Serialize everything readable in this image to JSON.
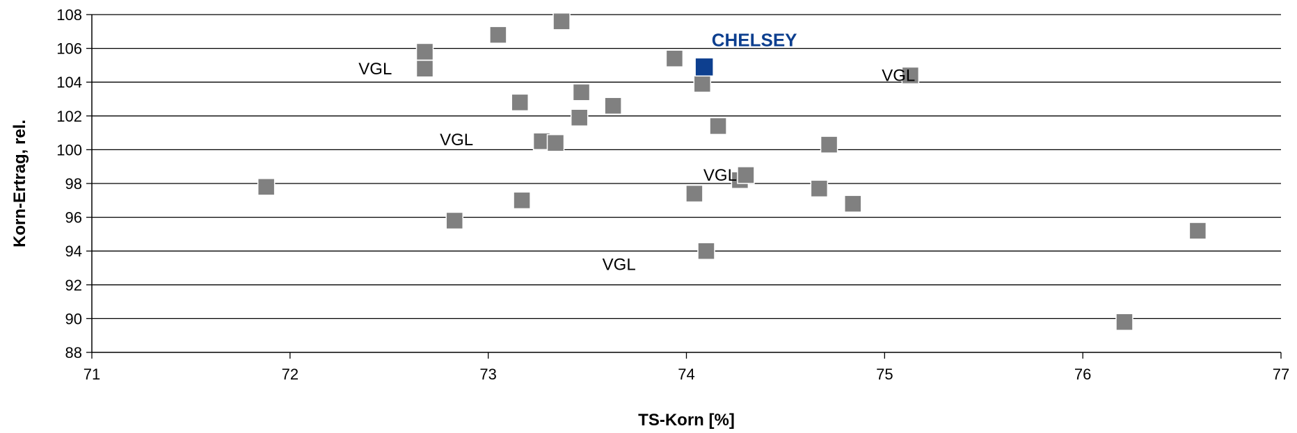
{
  "chart_data": {
    "type": "scatter",
    "xlabel": "TS-Korn [%]",
    "ylabel": "Korn-Ertrag, rel.",
    "xlim": [
      71,
      77
    ],
    "ylim": [
      88,
      108
    ],
    "x_ticks": [
      "71",
      "72",
      "73",
      "74",
      "75",
      "76",
      "77"
    ],
    "y_ticks": [
      "88",
      "90",
      "92",
      "94",
      "96",
      "98",
      "100",
      "102",
      "104",
      "106",
      "108"
    ],
    "grid": "horizontal",
    "point_color": "#808080",
    "highlight_color": "#0D3F8F",
    "points": [
      {
        "x": 71.88,
        "y": 97.8
      },
      {
        "x": 72.68,
        "y": 105.8
      },
      {
        "x": 72.68,
        "y": 104.8
      },
      {
        "x": 72.83,
        "y": 95.8
      },
      {
        "x": 73.05,
        "y": 106.8
      },
      {
        "x": 73.16,
        "y": 102.8
      },
      {
        "x": 73.17,
        "y": 97.0
      },
      {
        "x": 73.27,
        "y": 100.5
      },
      {
        "x": 73.34,
        "y": 100.4
      },
      {
        "x": 73.37,
        "y": 107.6
      },
      {
        "x": 73.46,
        "y": 101.9
      },
      {
        "x": 73.47,
        "y": 103.4
      },
      {
        "x": 73.63,
        "y": 102.6
      },
      {
        "x": 73.94,
        "y": 105.4
      },
      {
        "x": 74.04,
        "y": 97.4
      },
      {
        "x": 74.08,
        "y": 103.9
      },
      {
        "x": 74.1,
        "y": 94.0
      },
      {
        "x": 74.16,
        "y": 101.4
      },
      {
        "x": 74.27,
        "y": 98.2
      },
      {
        "x": 74.3,
        "y": 98.5
      },
      {
        "x": 74.67,
        "y": 97.7
      },
      {
        "x": 74.72,
        "y": 100.3
      },
      {
        "x": 74.84,
        "y": 96.8
      },
      {
        "x": 75.13,
        "y": 104.4
      },
      {
        "x": 76.21,
        "y": 89.8
      },
      {
        "x": 76.58,
        "y": 95.2
      }
    ],
    "highlight": {
      "x": 74.09,
      "y": 104.9,
      "label": "CHELSEY"
    },
    "annotations": [
      {
        "text": "VGL",
        "x": 72.43,
        "y": 104.8
      },
      {
        "text": "VGL",
        "x": 72.84,
        "y": 100.6
      },
      {
        "text": "VGL",
        "x": 75.07,
        "y": 104.4
      },
      {
        "text": "VGL",
        "x": 74.17,
        "y": 98.5
      },
      {
        "text": "VGL",
        "x": 73.66,
        "y": 93.2
      }
    ]
  }
}
